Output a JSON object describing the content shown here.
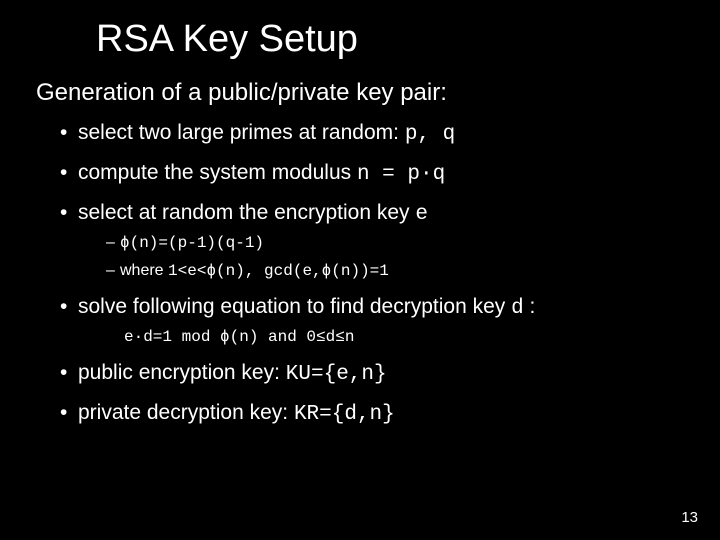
{
  "title": "RSA Key Setup",
  "lead": "Generation of a public/private key pair:",
  "bullets": {
    "b0": {
      "t": "select two large primes at random: ",
      "m": "p, q"
    },
    "b1": {
      "t": "compute the system modulus ",
      "m": "n = p·q"
    },
    "b2": {
      "t": "select at random the encryption key ",
      "m": "e",
      "sub": {
        "s0": "ϕ(n)=(p-1)(q-1)",
        "s1_prefix": "where ",
        "s1": "1<e<ϕ(n), gcd(e,ϕ(n))=1"
      }
    },
    "b3": {
      "t": "solve following equation to find decryption key ",
      "m": "d",
      "t2": " :",
      "detail": "e·d=1 mod ϕ(n) and 0≤d≤n"
    },
    "b4": {
      "t": "public encryption key: ",
      "m": "KU={e,n}"
    },
    "b5": {
      "t": "private decryption key: ",
      "m": "KR={d,n}"
    }
  },
  "page": "13",
  "colors": {
    "bg": "#000000",
    "text": "#ffffff"
  }
}
